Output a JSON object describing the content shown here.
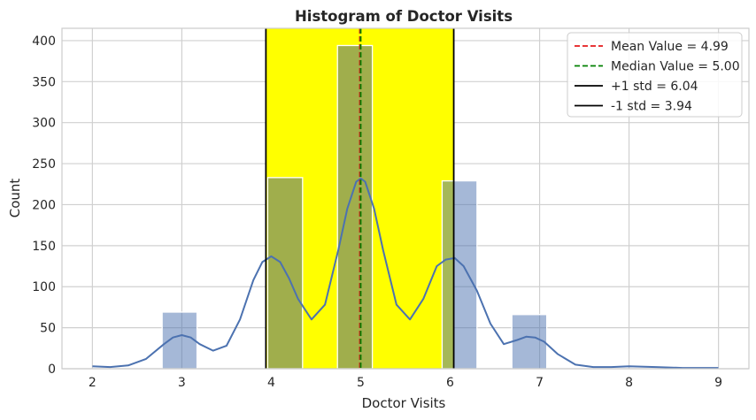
{
  "chart_data": {
    "type": "bar",
    "title": "Histogram of Doctor Visits",
    "xlabel": "Doctor Visits",
    "ylabel": "Count",
    "xlim": [
      1.66,
      9.34
    ],
    "ylim": [
      0,
      415
    ],
    "xticks": [
      2,
      3,
      4,
      5,
      6,
      7,
      8,
      9
    ],
    "yticks": [
      0,
      50,
      100,
      150,
      200,
      250,
      300,
      350,
      400
    ],
    "bins": [
      {
        "label": "2",
        "x0": 2.0,
        "x1": 2.35,
        "count": 0
      },
      {
        "label": "3",
        "x0": 2.78,
        "x1": 3.17,
        "count": 69
      },
      {
        "label": "4",
        "x0": 3.96,
        "x1": 4.35,
        "count": 233
      },
      {
        "label": "5",
        "x0": 4.74,
        "x1": 5.13,
        "count": 394
      },
      {
        "label": "6",
        "x0": 5.91,
        "x1": 6.3,
        "count": 229
      },
      {
        "label": "7",
        "x0": 6.69,
        "x1": 7.08,
        "count": 66
      },
      {
        "label": "8",
        "x0": 7.87,
        "x1": 8.26,
        "count": 0
      },
      {
        "label": "9",
        "x0": 8.65,
        "x1": 9.0,
        "count": 1
      }
    ],
    "kde": {
      "name": "KDE",
      "x": [
        2.0,
        2.2,
        2.4,
        2.6,
        2.8,
        2.9,
        3.0,
        3.1,
        3.2,
        3.35,
        3.5,
        3.65,
        3.8,
        3.9,
        4.0,
        4.1,
        4.2,
        4.3,
        4.45,
        4.6,
        4.75,
        4.85,
        4.95,
        5.0,
        5.05,
        5.15,
        5.25,
        5.4,
        5.55,
        5.7,
        5.85,
        5.95,
        6.05,
        6.15,
        6.3,
        6.45,
        6.6,
        6.75,
        6.85,
        6.95,
        7.05,
        7.2,
        7.4,
        7.6,
        7.8,
        8.0,
        8.3,
        8.6,
        9.0
      ],
      "y": [
        3,
        2,
        4,
        12,
        30,
        38,
        41,
        38,
        30,
        22,
        28,
        60,
        108,
        130,
        137,
        130,
        110,
        85,
        60,
        78,
        145,
        195,
        228,
        232,
        228,
        195,
        145,
        78,
        60,
        85,
        125,
        133,
        135,
        125,
        95,
        55,
        30,
        35,
        39,
        38,
        33,
        18,
        5,
        2,
        2,
        3,
        2,
        1,
        1
      ]
    },
    "std_band": {
      "low": 3.94,
      "high": 6.04,
      "color": "#ffff00"
    },
    "reference_lines": [
      {
        "name": "Mean Value = 4.99",
        "x": 4.99,
        "color": "#e41a1c",
        "style": "dashed"
      },
      {
        "name": "Median Value = 5.00",
        "x": 5.0,
        "color": "#008000",
        "style": "dashed"
      },
      {
        "name": "+1 std = 6.04",
        "x": 6.04,
        "color": "#000000",
        "style": "solid"
      },
      {
        "name": "-1 std = 3.94",
        "x": 3.94,
        "color": "#000000",
        "style": "solid"
      }
    ],
    "bar_color": "#4c72b0",
    "bar_highlight_color": "#a0ae4c",
    "kde_color": "#4c72b0",
    "grid": true,
    "legend_position": "top-right"
  }
}
